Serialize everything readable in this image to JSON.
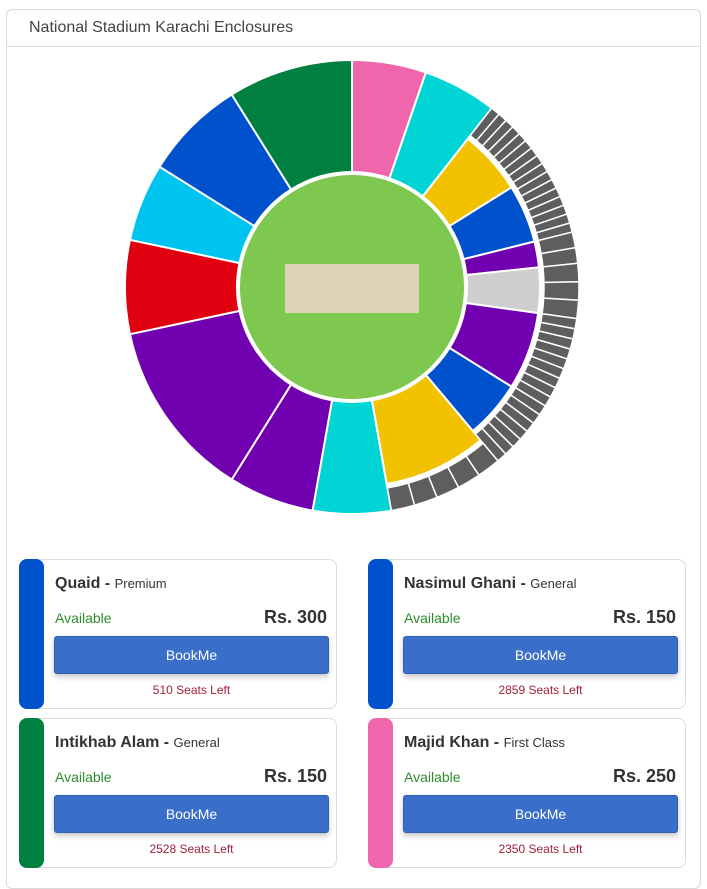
{
  "panel": {
    "title": "National Stadium Karachi Enclosures"
  },
  "map_colors": {
    "dark_green": "#008040",
    "pink": "#f066ad",
    "cyan": "#00d4d4",
    "yellow": "#f2c200",
    "blue": "#0052cc",
    "purple": "#7000b0",
    "grey": "#cfcfcf",
    "sky": "#00c4f0",
    "red": "#e00010",
    "box": "#5e5e5e",
    "field": "#7ec850",
    "pitch": "#e0d4b8"
  },
  "enclosure_cards": [
    {
      "name": "Quaid",
      "category": "Premium",
      "status": "Available",
      "price": "Rs. 300",
      "button": "BookMe",
      "seats_left": "510 Seats Left",
      "color": "#0052cc"
    },
    {
      "name": "Nasimul Ghani",
      "category": "General",
      "status": "Available",
      "price": "Rs. 150",
      "button": "BookMe",
      "seats_left": "2859 Seats Left",
      "color": "#0052cc"
    },
    {
      "name": "Intikhab Alam",
      "category": "General",
      "status": "Available",
      "price": "Rs. 150",
      "button": "BookMe",
      "seats_left": "2528 Seats Left",
      "color": "#008040"
    },
    {
      "name": "Majid Khan",
      "category": "First Class",
      "status": "Available",
      "price": "Rs. 250",
      "button": "BookMe",
      "seats_left": "2350 Seats Left",
      "color": "#f066ad"
    }
  ]
}
